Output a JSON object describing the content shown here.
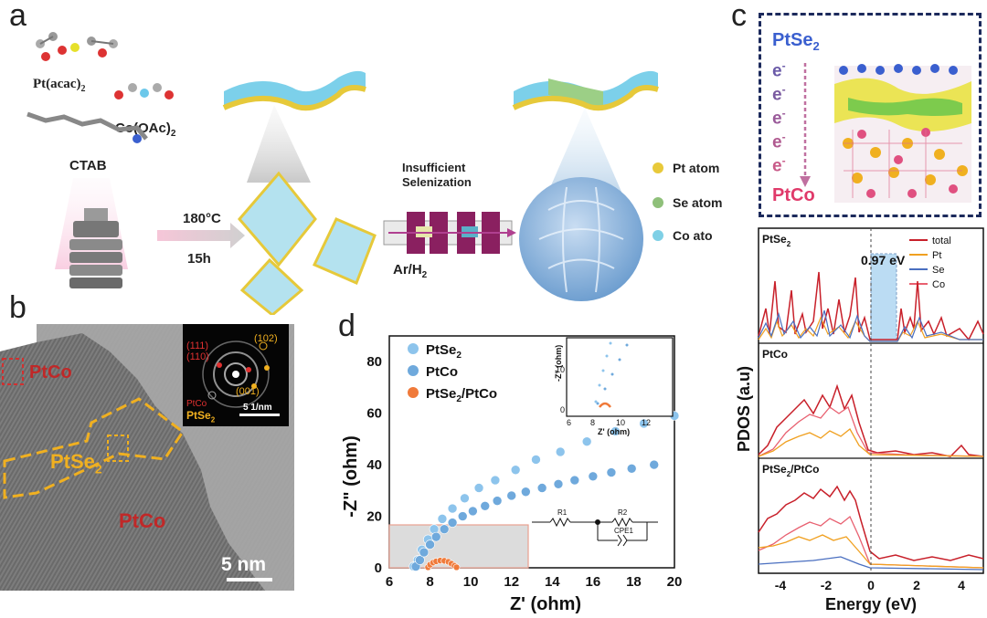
{
  "panel_labels": {
    "a": "a",
    "b": "b",
    "c": "c",
    "d": "d"
  },
  "panel_a": {
    "precursor_pt": "Pt(acac)",
    "precursor_pt_sub": "2",
    "precursor_co": "Co(OAc)",
    "precursor_co_sub": "2",
    "surfactant": "CTAB",
    "temperature": "180°C",
    "time": "15h",
    "step_title_1": "Insufficient",
    "step_title_2": "Selenization",
    "gas": "Ar/H",
    "gas_sub": "2",
    "legend": [
      {
        "label": "Pt atom",
        "color": "#e8c93a"
      },
      {
        "label": "Se atom",
        "color": "#8fc07a"
      },
      {
        "label": "Co ato",
        "color": "#7fd0e6"
      }
    ]
  },
  "panel_b": {
    "region_top": "PtCo",
    "region_mid": "PtSe",
    "region_mid_sub": "2",
    "region_bottom": "PtCo",
    "scale_bar": "5 nm",
    "fft": {
      "spot_111": "(111)",
      "spot_110": "(110)",
      "spot_102": "(102)",
      "spot_001": "(001)",
      "legend_ptco": "PtCo",
      "legend_ptse2": "PtSe",
      "legend_ptse2_sub": "2",
      "scale": "5 1/nm"
    }
  },
  "panel_c": {
    "top_label": "PtSe",
    "top_label_sub": "2",
    "electron": "e",
    "electron_sup": "-",
    "bottom_label": "PtCo"
  },
  "pdos": {
    "ylabel": "PDOS (a.u)",
    "xlabel": "Energy (eV)",
    "gap_label": "0.97 eV",
    "subpanels": [
      "PtSe",
      "PtCo",
      "PtSe"
    ],
    "subpanel_titles": [
      {
        "main": "PtSe",
        "sub": "2",
        "rest": ""
      },
      {
        "main": "PtCo",
        "sub": "",
        "rest": ""
      },
      {
        "main": "PtSe",
        "sub": "2",
        "rest": "/PtCo"
      }
    ],
    "legend": [
      {
        "label": "total",
        "color": "#c8202a"
      },
      {
        "label": "Pt",
        "color": "#f0a020"
      },
      {
        "label": "Se",
        "color": "#4a6fc0"
      },
      {
        "label": "Co",
        "color": "#e86070"
      }
    ],
    "x_ticks": [
      "-4",
      "-2",
      "0",
      "2",
      "4"
    ]
  },
  "chart_data": {
    "type": "scatter",
    "xlabel": "Z' (ohm)",
    "ylabel": "-Z\" (ohm)",
    "xlim": [
      6,
      20
    ],
    "ylim": [
      0,
      90
    ],
    "x_ticks": [
      6,
      8,
      10,
      12,
      14,
      16,
      18,
      20
    ],
    "y_ticks": [
      0,
      20,
      40,
      60,
      80
    ],
    "legend": [
      "PtSe2",
      "PtCo",
      "PtSe2/PtCo"
    ],
    "series": [
      {
        "name": "PtSe2",
        "color": "#8dc4ec",
        "x": [
          7.2,
          7.4,
          7.6,
          7.9,
          8.2,
          8.6,
          9.1,
          9.7,
          10.4,
          11.2,
          12.2,
          13.2,
          14.4,
          15.7,
          17.1,
          18.5,
          20.0
        ],
        "y": [
          0.5,
          3,
          7,
          11,
          15,
          19,
          23,
          27,
          31,
          34,
          38,
          42,
          45,
          49,
          53,
          56,
          59
        ]
      },
      {
        "name": "PtCo",
        "color": "#6fa9dc",
        "x": [
          7.3,
          7.5,
          7.7,
          8.0,
          8.3,
          8.7,
          9.1,
          9.6,
          10.1,
          10.7,
          11.3,
          12.0,
          12.7,
          13.5,
          14.3,
          15.1,
          16.0,
          16.9,
          17.9,
          19.0
        ],
        "y": [
          0.5,
          3,
          6,
          9,
          12,
          15,
          17.5,
          20,
          22,
          24,
          26,
          28,
          29.5,
          31,
          32.5,
          34,
          35.5,
          37,
          38.5,
          40
        ]
      },
      {
        "name": "PtSe2/PtCo",
        "color": "#f07a3a",
        "x": [
          7.9,
          8.0,
          8.15,
          8.3,
          8.5,
          8.7,
          8.9,
          9.05,
          9.2,
          9.3
        ],
        "y": [
          0.2,
          1.2,
          2.0,
          2.5,
          2.8,
          2.7,
          2.3,
          1.6,
          0.8,
          0.2
        ]
      }
    ],
    "inset": {
      "xlabel": "Z' (ohm)",
      "ylabel": "-Z\" (ohm)",
      "x_ticks": [
        6,
        8,
        10,
        12
      ],
      "y_ticks": [
        0,
        10
      ]
    },
    "circuit": {
      "r1": "R1",
      "r2": "R2",
      "cpe": "CPE1"
    }
  }
}
